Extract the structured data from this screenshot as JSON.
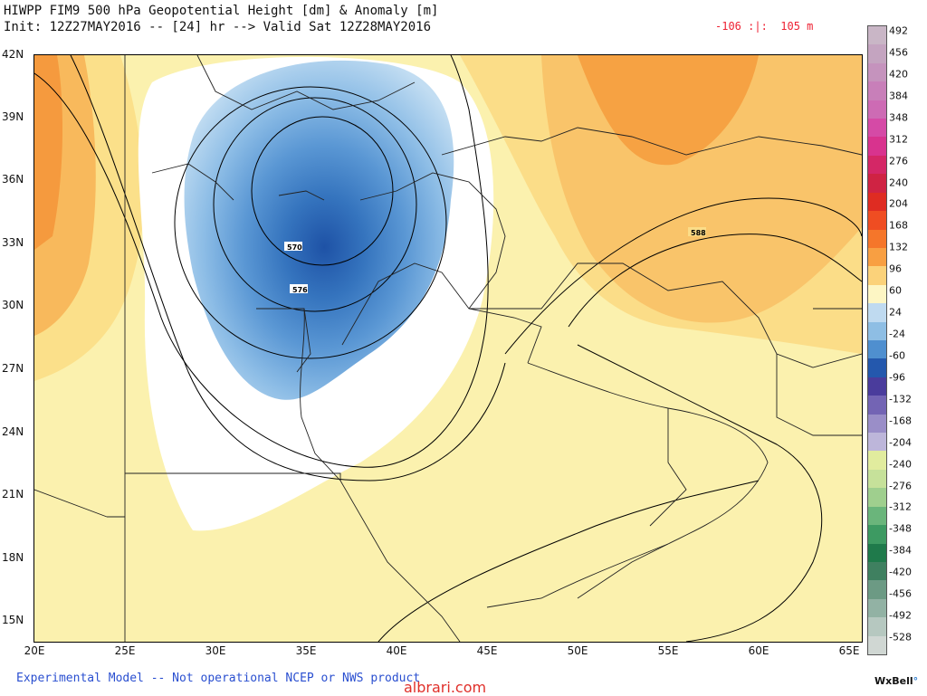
{
  "header": {
    "title": "HIWPP FIM9 500 hPa Geopotential Height [dm] & Anomaly [m]",
    "init_line": "Init: 12Z27MAY2016 -- [24] hr --> Valid Sat 12Z28MAY2016",
    "anomaly_range": "-106 :|:  105 m"
  },
  "map": {
    "lat_ticks": [
      "42N",
      "39N",
      "36N",
      "33N",
      "30N",
      "27N",
      "24N",
      "21N",
      "18N",
      "15N"
    ],
    "lon_ticks": [
      "20E",
      "25E",
      "30E",
      "35E",
      "40E",
      "45E",
      "50E",
      "55E",
      "60E",
      "65E"
    ],
    "contour_labels": [
      "570",
      "576",
      "588"
    ],
    "lat_range": [
      14,
      42
    ],
    "lon_range": [
      20,
      65.7
    ]
  },
  "colorbar": {
    "labels": [
      "492",
      "456",
      "420",
      "384",
      "348",
      "312",
      "276",
      "240",
      "204",
      "168",
      "132",
      "96",
      "60",
      "24",
      "-24",
      "-60",
      "-96",
      "-132",
      "-168",
      "-204",
      "-240",
      "-276",
      "-312",
      "-348",
      "-384",
      "-420",
      "-456",
      "-492",
      "-528"
    ],
    "colors": [
      "#c9b6c6",
      "#c4a4c0",
      "#c593bd",
      "#c87fb9",
      "#cd6bb4",
      "#d54aa6",
      "#d8338e",
      "#d42766",
      "#cf2343",
      "#df2c22",
      "#ef4d22",
      "#f5762a",
      "#f89f42",
      "#fbd27a",
      "#fdf6c4",
      "#bfdaf0",
      "#8ebee4",
      "#4f8fcf",
      "#2458ad",
      "#4a3c9c",
      "#7364b4",
      "#9a8ec8",
      "#bdb6da",
      "#e1ec9e",
      "#c6e19a",
      "#9fcf8e",
      "#6ab57b",
      "#3d9a62",
      "#1f7a4b",
      "#3f8060",
      "#6c9a84",
      "#92b2a4",
      "#b6c8c0",
      "#d0d7d3"
    ]
  },
  "footer": {
    "note": "Experimental Model -- Not operational NCEP or NWS product",
    "watermark": "albrari.com",
    "brand": "WxBell"
  }
}
